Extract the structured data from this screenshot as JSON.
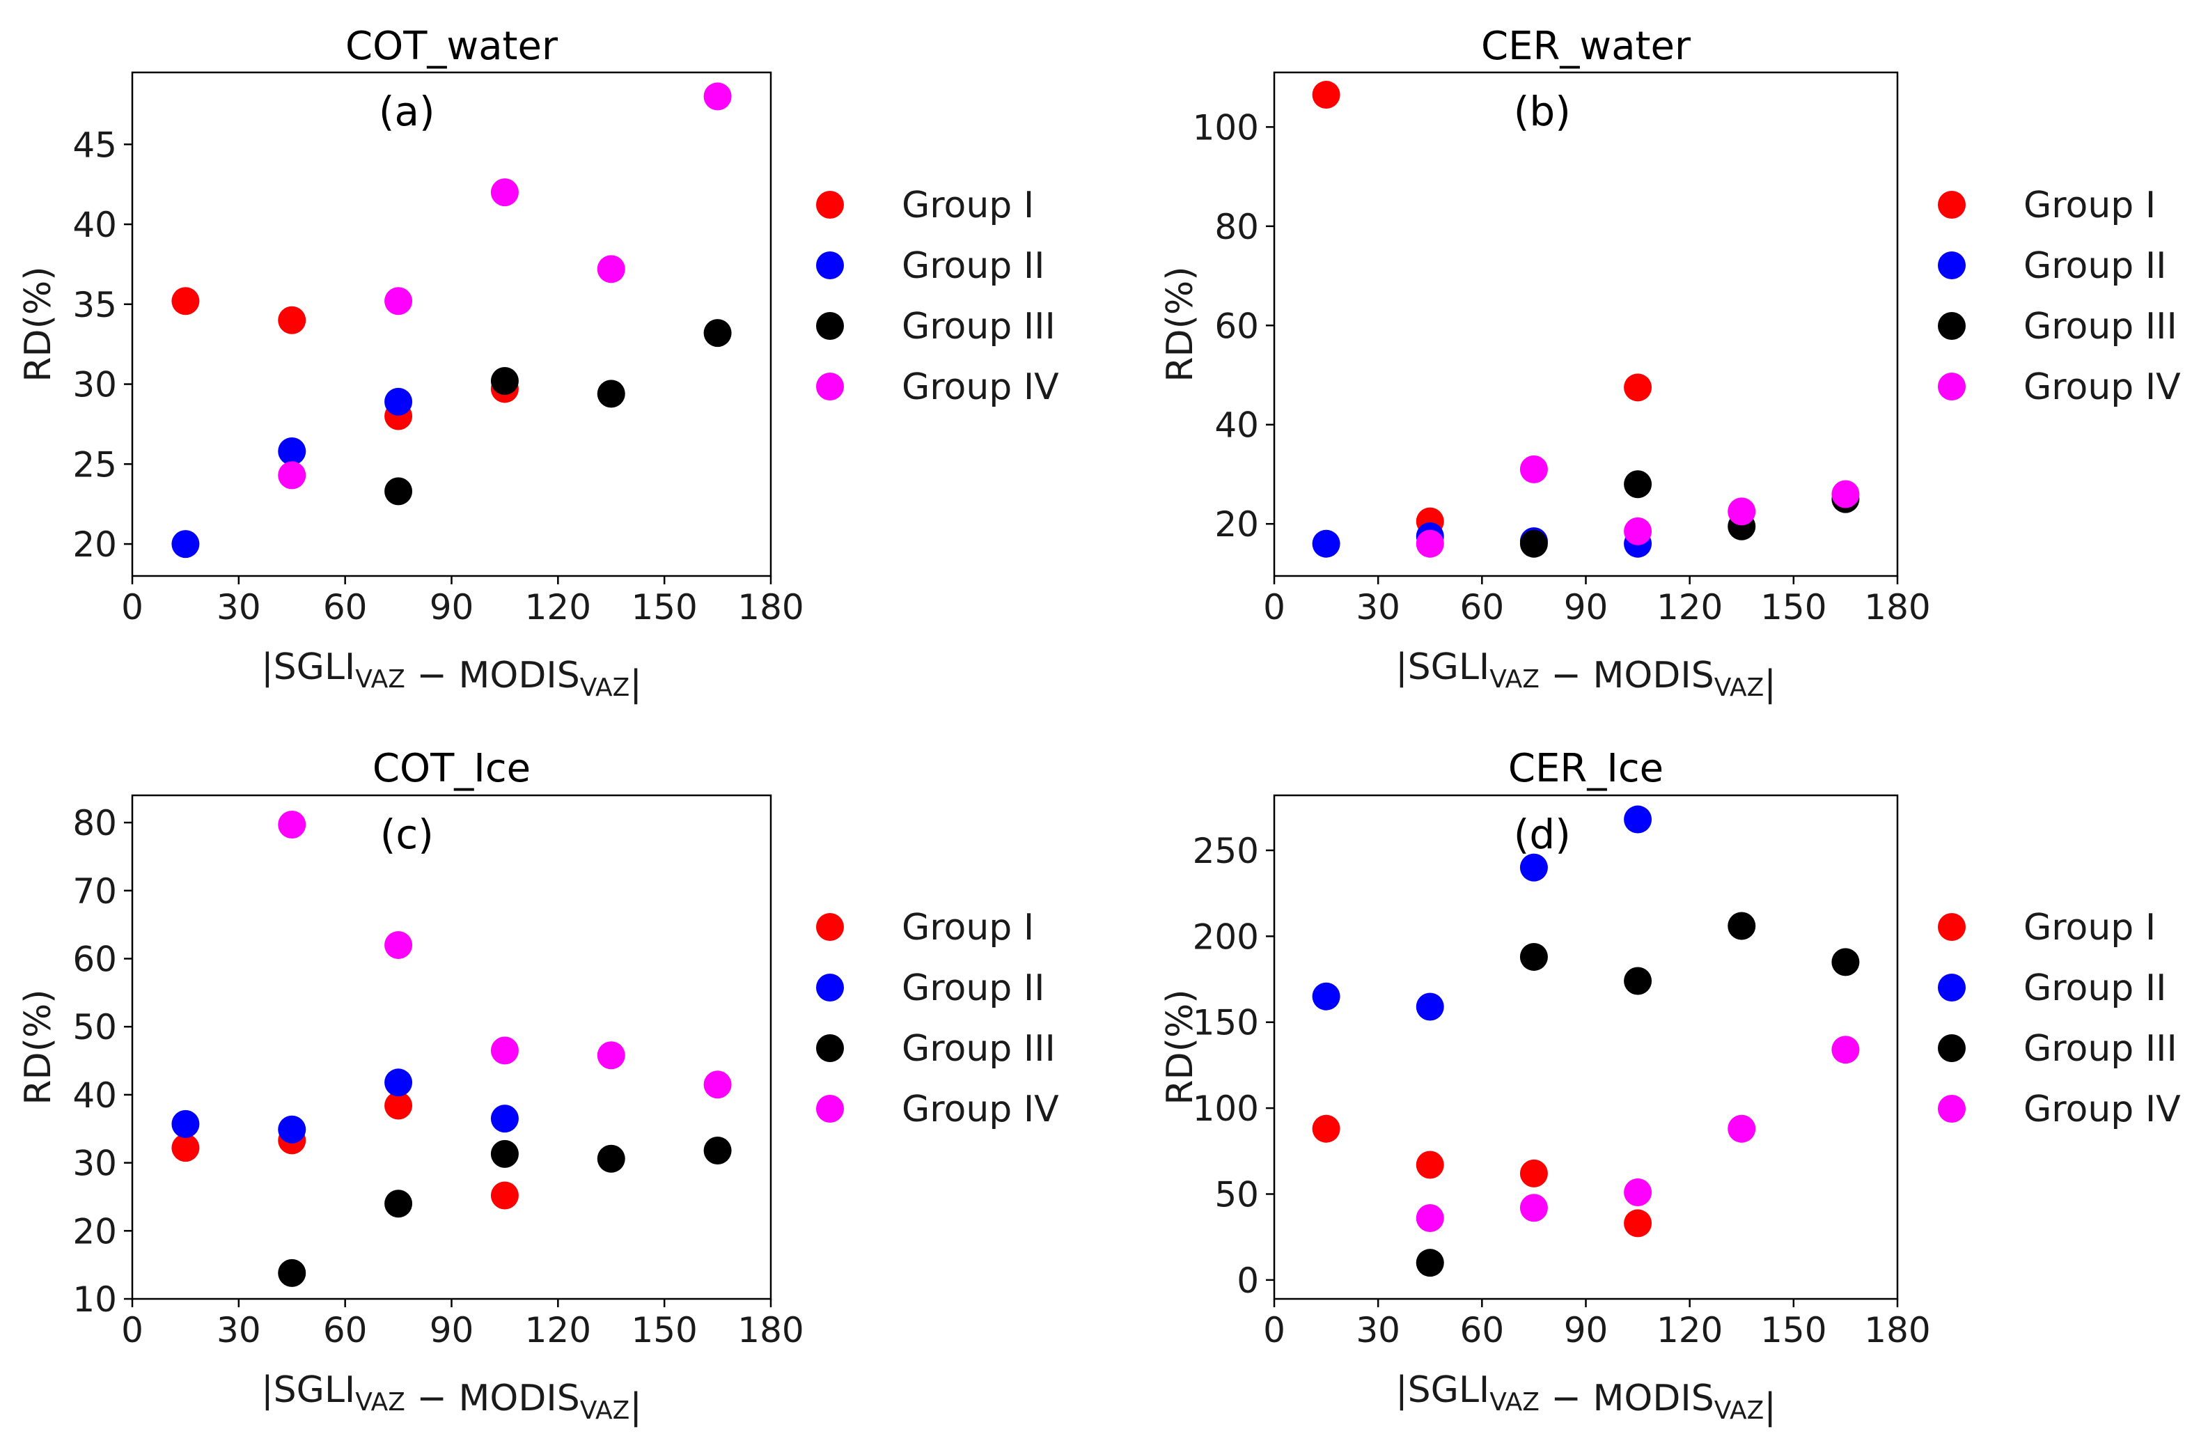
{
  "figure": {
    "legend_title": "",
    "groups": [
      {
        "name": "Group I",
        "color": "#ff0000"
      },
      {
        "name": "Group II",
        "color": "#0000ff"
      },
      {
        "name": "Group III",
        "color": "#000000"
      },
      {
        "name": "Group IV",
        "color": "#ff00ff"
      }
    ]
  },
  "chart_data": [
    {
      "type": "scatter",
      "title": "COT_water",
      "panel_label": "(a)",
      "xlabel": {
        "pre": "|SGLI",
        "sub1": "VAZ",
        "mid": " − MODIS",
        "sub2": "VAZ",
        "post": "|"
      },
      "ylabel": "RD(%)",
      "xlim": [
        0,
        180
      ],
      "ylim": [
        18,
        49.5
      ],
      "xticks": [
        0,
        30,
        60,
        90,
        120,
        150,
        180
      ],
      "yticks": [
        20,
        25,
        30,
        35,
        40,
        45
      ],
      "legend_position": "right",
      "series": [
        {
          "name": "Group I",
          "color": "#ff0000",
          "points": [
            [
              15,
              35.2
            ],
            [
              45,
              34.0
            ],
            [
              75,
              28.0
            ],
            [
              105,
              29.7
            ]
          ]
        },
        {
          "name": "Group II",
          "color": "#0000ff",
          "points": [
            [
              15,
              20.0
            ],
            [
              45,
              25.8
            ],
            [
              75,
              28.9
            ]
          ]
        },
        {
          "name": "Group III",
          "color": "#000000",
          "points": [
            [
              75,
              23.3
            ],
            [
              105,
              30.2
            ],
            [
              135,
              29.4
            ],
            [
              165,
              33.2
            ]
          ]
        },
        {
          "name": "Group IV",
          "color": "#ff00ff",
          "points": [
            [
              45,
              24.3
            ],
            [
              75,
              35.2
            ],
            [
              105,
              42.0
            ],
            [
              135,
              37.2
            ],
            [
              165,
              48.0
            ]
          ]
        }
      ]
    },
    {
      "type": "scatter",
      "title": "CER_water",
      "panel_label": "(b)",
      "xlabel": {
        "pre": "|SGLI",
        "sub1": "VAZ",
        "mid": " − MODIS",
        "sub2": "VAZ",
        "post": "|"
      },
      "ylabel": "RD(%)",
      "xlim": [
        0,
        180
      ],
      "ylim": [
        9.5,
        111
      ],
      "xticks": [
        0,
        30,
        60,
        90,
        120,
        150,
        180
      ],
      "yticks": [
        20,
        40,
        60,
        80,
        100
      ],
      "legend_position": "right",
      "series": [
        {
          "name": "Group I",
          "color": "#ff0000",
          "points": [
            [
              15,
              106.5
            ],
            [
              45,
              20.5
            ],
            [
              105,
              47.5
            ]
          ]
        },
        {
          "name": "Group II",
          "color": "#0000ff",
          "points": [
            [
              15,
              16.0
            ],
            [
              45,
              17.5
            ],
            [
              75,
              16.5
            ],
            [
              105,
              16.0
            ]
          ]
        },
        {
          "name": "Group III",
          "color": "#000000",
          "points": [
            [
              75,
              16.0
            ],
            [
              105,
              28.0
            ],
            [
              135,
              19.5
            ],
            [
              165,
              25.0
            ]
          ]
        },
        {
          "name": "Group IV",
          "color": "#ff00ff",
          "points": [
            [
              45,
              16.0
            ],
            [
              75,
              31.0
            ],
            [
              105,
              18.5
            ],
            [
              135,
              22.5
            ],
            [
              165,
              26.0
            ]
          ]
        }
      ]
    },
    {
      "type": "scatter",
      "title": "COT_Ice",
      "panel_label": "(c)",
      "xlabel": {
        "pre": "|SGLI",
        "sub1": "VAZ",
        "mid": " − MODIS",
        "sub2": "VAZ",
        "post": "|"
      },
      "ylabel": "RD(%)",
      "xlim": [
        0,
        180
      ],
      "ylim": [
        10,
        84
      ],
      "xticks": [
        0,
        30,
        60,
        90,
        120,
        150,
        180
      ],
      "yticks": [
        10,
        20,
        30,
        40,
        50,
        60,
        70,
        80
      ],
      "legend_position": "right",
      "series": [
        {
          "name": "Group I",
          "color": "#ff0000",
          "points": [
            [
              15,
              32.2
            ],
            [
              45,
              33.3
            ],
            [
              75,
              38.4
            ],
            [
              105,
              25.2
            ]
          ]
        },
        {
          "name": "Group II",
          "color": "#0000ff",
          "points": [
            [
              15,
              35.7
            ],
            [
              45,
              34.9
            ],
            [
              75,
              41.8
            ],
            [
              105,
              36.5
            ]
          ]
        },
        {
          "name": "Group III",
          "color": "#000000",
          "points": [
            [
              45,
              13.8
            ],
            [
              75,
              24.0
            ],
            [
              105,
              31.3
            ],
            [
              135,
              30.6
            ],
            [
              165,
              31.8
            ]
          ]
        },
        {
          "name": "Group IV",
          "color": "#ff00ff",
          "points": [
            [
              45,
              79.7
            ],
            [
              75,
              62.0
            ],
            [
              105,
              46.5
            ],
            [
              135,
              45.8
            ],
            [
              165,
              41.5
            ]
          ]
        }
      ]
    },
    {
      "type": "scatter",
      "title": "CER_Ice",
      "panel_label": "(d)",
      "xlabel": {
        "pre": "|SGLI",
        "sub1": "VAZ",
        "mid": " − MODIS",
        "sub2": "VAZ",
        "post": "|"
      },
      "ylabel": "RD(%)",
      "xlim": [
        0,
        180
      ],
      "ylim": [
        -11,
        282
      ],
      "xticks": [
        0,
        30,
        60,
        90,
        120,
        150,
        180
      ],
      "yticks": [
        0,
        50,
        100,
        150,
        200,
        250
      ],
      "legend_position": "right",
      "series": [
        {
          "name": "Group I",
          "color": "#ff0000",
          "points": [
            [
              15,
              88
            ],
            [
              45,
              67
            ],
            [
              75,
              62
            ],
            [
              105,
              33
            ]
          ]
        },
        {
          "name": "Group II",
          "color": "#0000ff",
          "points": [
            [
              15,
              165
            ],
            [
              45,
              159
            ],
            [
              75,
              240
            ],
            [
              105,
              268
            ]
          ]
        },
        {
          "name": "Group III",
          "color": "#000000",
          "points": [
            [
              45,
              10
            ],
            [
              75,
              188
            ],
            [
              105,
              174
            ],
            [
              135,
              206
            ],
            [
              165,
              185
            ]
          ]
        },
        {
          "name": "Group IV",
          "color": "#ff00ff",
          "points": [
            [
              45,
              36
            ],
            [
              75,
              42
            ],
            [
              105,
              51
            ],
            [
              135,
              88
            ],
            [
              165,
              134
            ]
          ]
        }
      ]
    }
  ]
}
